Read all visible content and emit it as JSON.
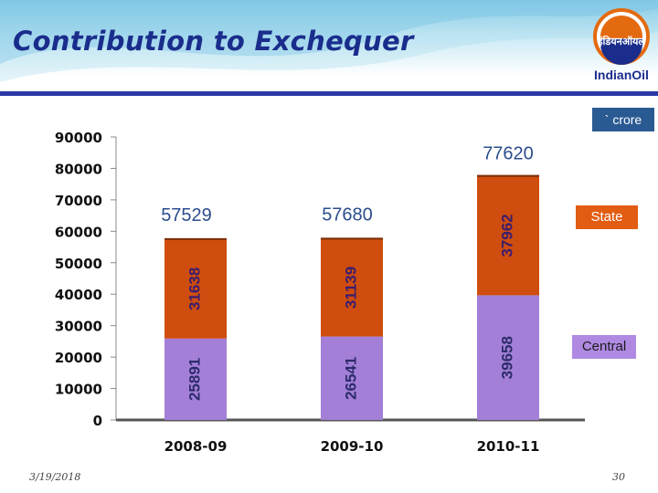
{
  "slide": {
    "title": "Contribution to Exchequer",
    "logo_hindi": "इंडियनऑयल",
    "logo_text": "IndianOil",
    "unit_label": "` crore",
    "footer_date": "3/19/2018",
    "page_number": "30"
  },
  "colors": {
    "state": "#cf4d0e",
    "central": "#a47fd8",
    "total_label": "#2b4d8c",
    "header_rule": "#2b3aa8"
  },
  "chart_data": {
    "type": "bar",
    "stacked": true,
    "title": "Contribution to Exchequer",
    "xlabel": "",
    "ylabel": "",
    "unit": "` crore",
    "ylim": [
      0,
      90000
    ],
    "yticks": [
      0,
      10000,
      20000,
      30000,
      40000,
      50000,
      60000,
      70000,
      80000,
      90000
    ],
    "categories": [
      "2008-09",
      "2009-10",
      "2010-11"
    ],
    "series": [
      {
        "name": "Central",
        "values": [
          25891,
          26541,
          39658
        ]
      },
      {
        "name": "State",
        "values": [
          31638,
          31139,
          37962
        ]
      }
    ],
    "totals": [
      57529,
      57680,
      77620
    ],
    "legend": [
      {
        "name": "State",
        "placement": "right"
      },
      {
        "name": "Central",
        "placement": "right"
      }
    ]
  }
}
